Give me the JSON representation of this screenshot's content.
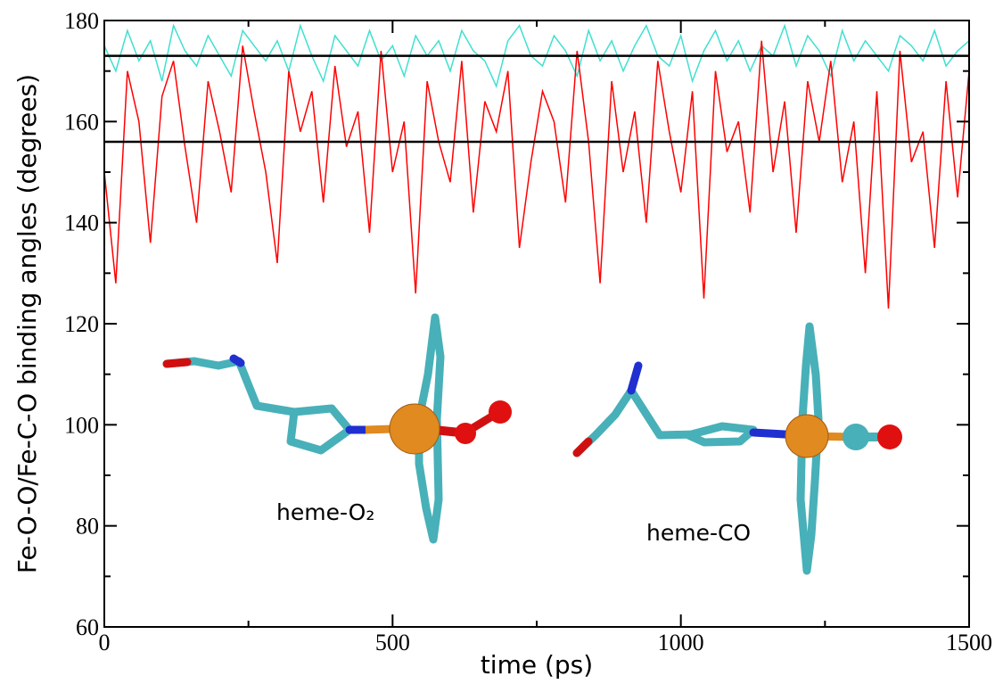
{
  "chart_data": {
    "type": "line",
    "xlabel": "time (ps)",
    "ylabel": "Fe-O-O/Fe-C-O binding angles (degrees)",
    "x": [
      0,
      20,
      40,
      60,
      80,
      100,
      120,
      140,
      160,
      180,
      200,
      220,
      240,
      260,
      280,
      300,
      320,
      340,
      360,
      380,
      400,
      420,
      440,
      460,
      480,
      500,
      520,
      540,
      560,
      580,
      600,
      620,
      640,
      660,
      680,
      700,
      720,
      740,
      760,
      780,
      800,
      820,
      840,
      860,
      880,
      900,
      920,
      940,
      960,
      980,
      1000,
      1020,
      1040,
      1060,
      1080,
      1100,
      1120,
      1140,
      1160,
      1180,
      1200,
      1220,
      1240,
      1260,
      1280,
      1300,
      1320,
      1340,
      1360,
      1380,
      1400,
      1420,
      1440,
      1460,
      1480,
      1500
    ],
    "series": [
      {
        "color": "#40e0d0",
        "values": [
          175,
          170,
          178,
          172,
          176,
          168,
          179,
          174,
          171,
          177,
          173,
          169,
          178,
          175,
          172,
          176,
          170,
          179,
          173,
          168,
          177,
          174,
          171,
          178,
          172,
          175,
          169,
          177,
          173,
          176,
          170,
          178,
          174,
          172,
          167,
          176,
          179,
          173,
          171,
          177,
          174,
          169,
          178,
          172,
          176,
          170,
          175,
          179,
          173,
          171,
          177,
          168,
          174,
          178,
          172,
          176,
          170,
          175,
          173,
          179,
          171,
          177,
          174,
          169,
          178,
          172,
          176,
          173,
          170,
          177,
          175,
          172,
          178,
          171,
          174,
          176
        ]
      },
      {
        "color": "#ff0000",
        "values": [
          150,
          128,
          170,
          160,
          136,
          165,
          172,
          155,
          140,
          168,
          158,
          146,
          175,
          162,
          150,
          132,
          170,
          158,
          166,
          144,
          171,
          155,
          162,
          138,
          174,
          150,
          160,
          126,
          168,
          156,
          148,
          172,
          142,
          164,
          158,
          170,
          135,
          152,
          166,
          160,
          144,
          174,
          156,
          128,
          168,
          150,
          162,
          140,
          172,
          158,
          146,
          166,
          125,
          170,
          154,
          160,
          142,
          176,
          150,
          164,
          138,
          168,
          156,
          172,
          148,
          160,
          130,
          166,
          123,
          174,
          152,
          158,
          135,
          168,
          145,
          170
        ]
      }
    ],
    "hlines": [
      173,
      156
    ],
    "hline_color": "#000000",
    "annotations": [
      "heme-O₂",
      "heme-CO"
    ],
    "xlim": [
      0,
      1500
    ],
    "xticks": [
      0,
      500,
      1000,
      1500
    ],
    "xminorticks": [
      250,
      750,
      1250
    ],
    "ylim": [
      60,
      180
    ],
    "yticks": [
      60,
      80,
      100,
      120,
      140,
      160,
      180
    ],
    "yminorticks": [
      70,
      90,
      110,
      130,
      150,
      170
    ]
  }
}
